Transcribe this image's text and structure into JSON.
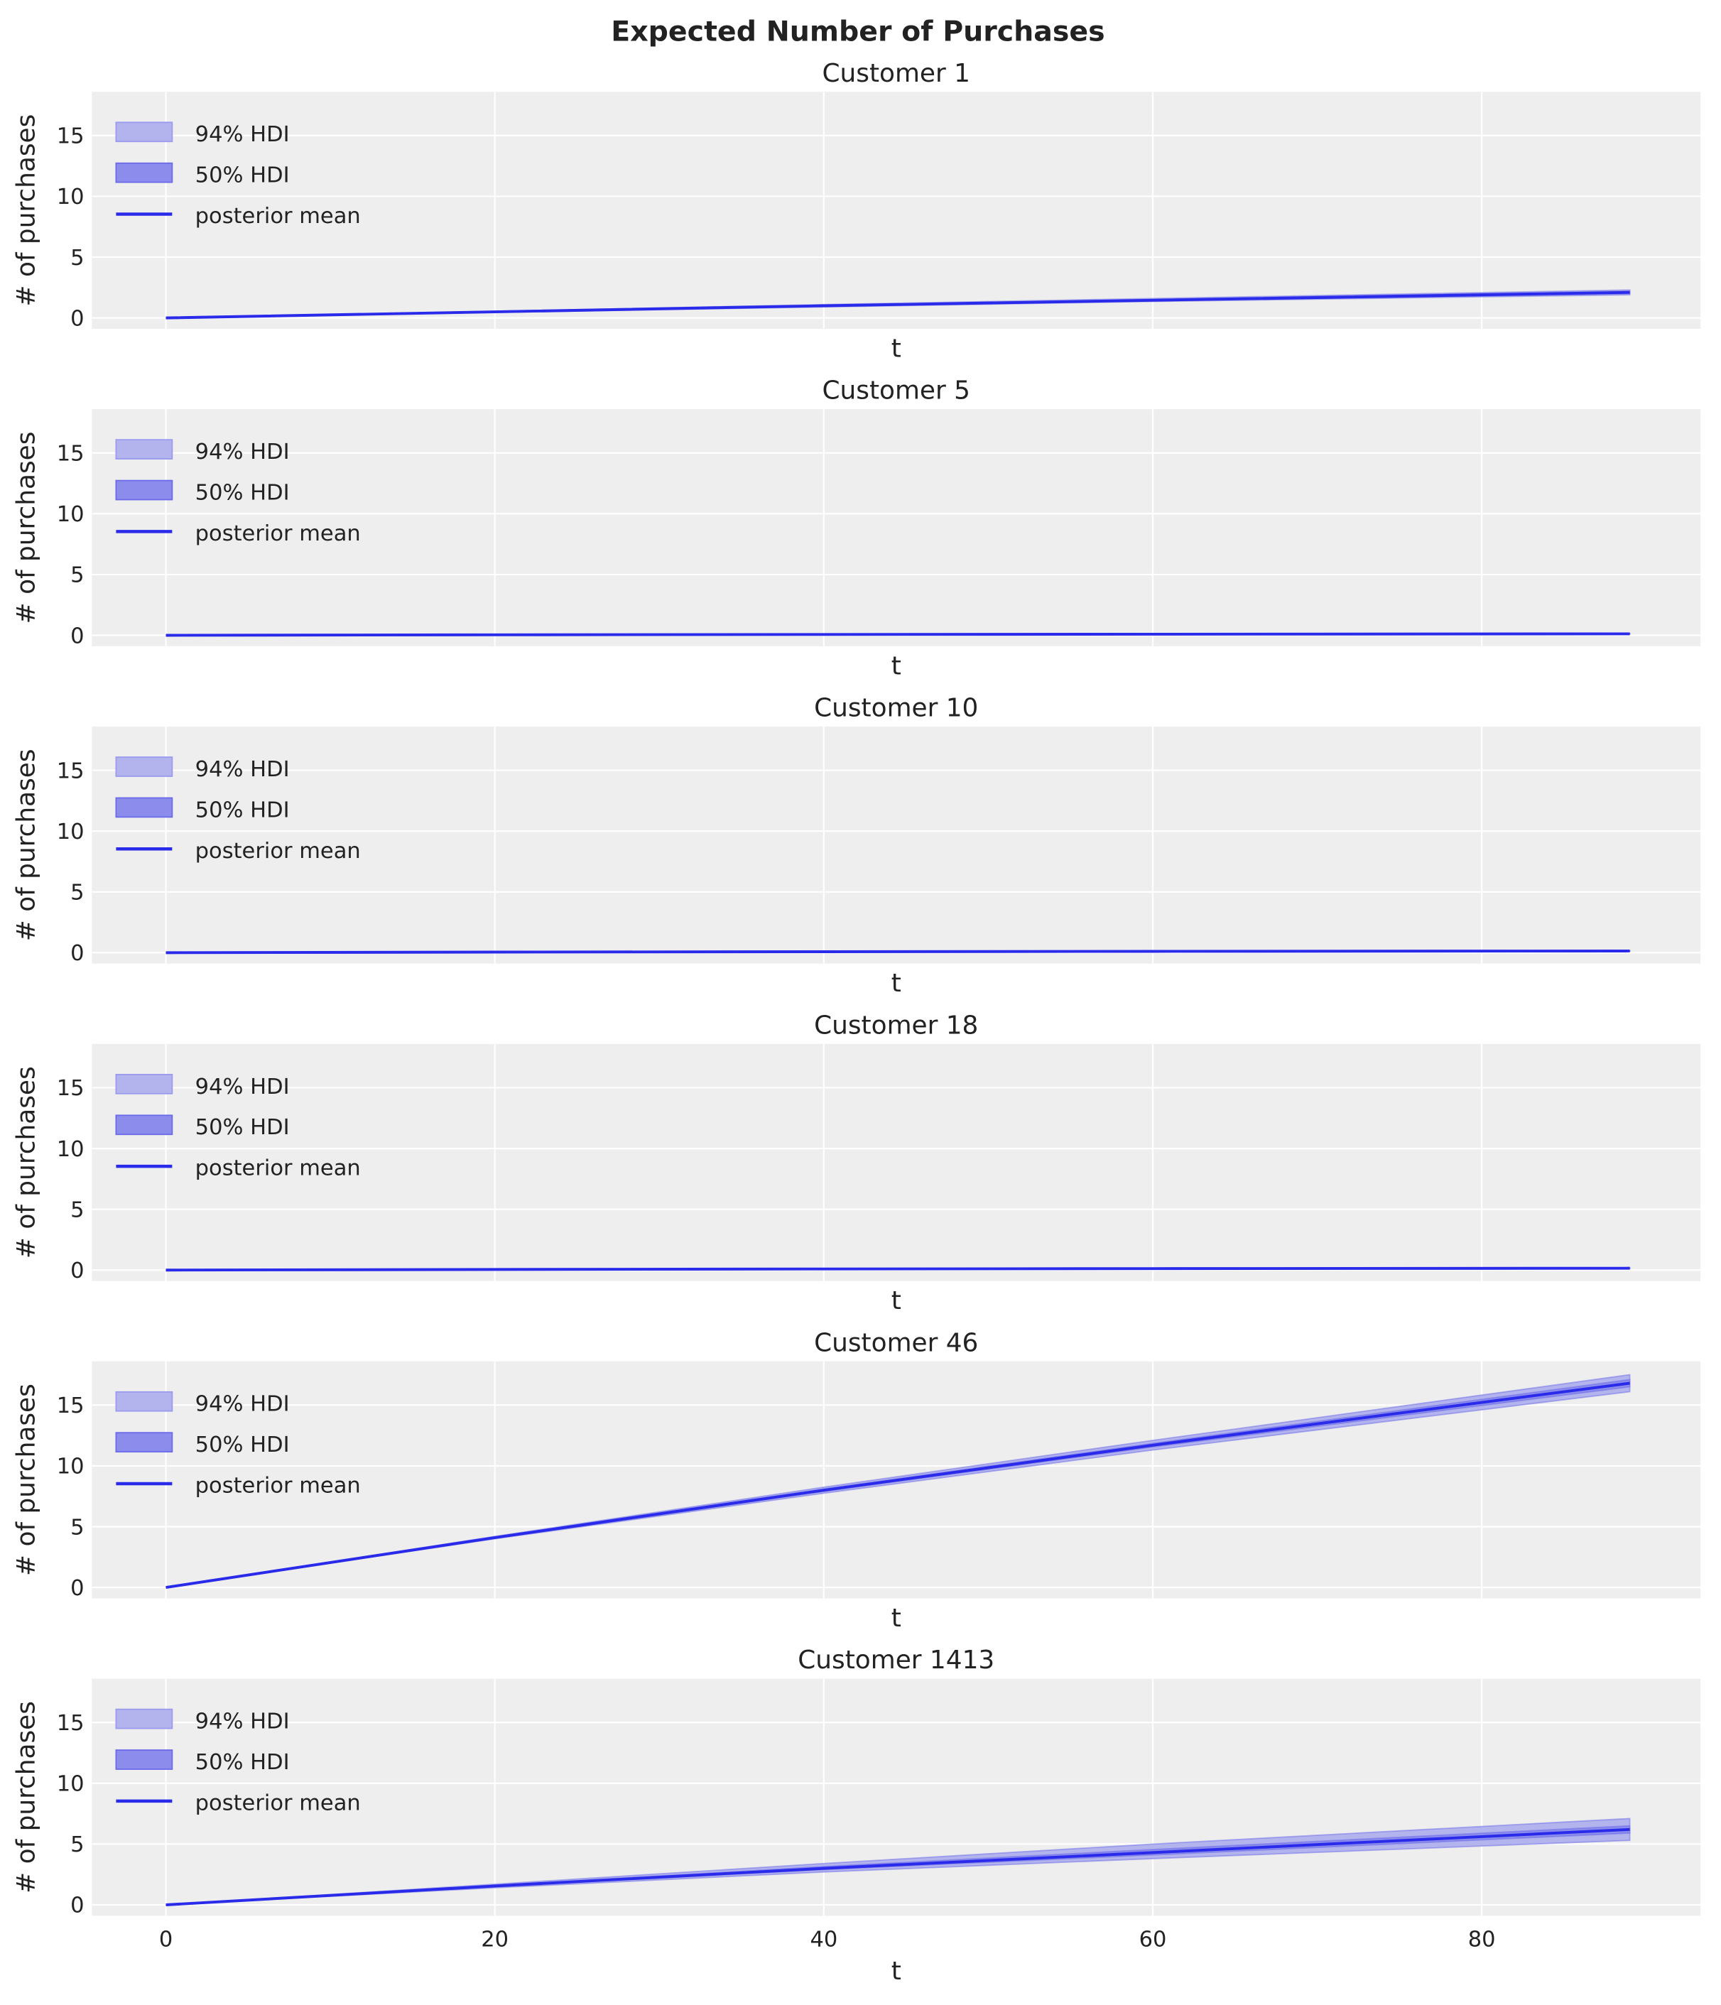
{
  "chart_data": {
    "type": "line",
    "suptitle": "Expected Number of Purchases",
    "xlabel": "t",
    "ylabel": "# of purchases",
    "xlim": [
      -4.5,
      93.3
    ],
    "ylim": [
      -0.9,
      18.6
    ],
    "xticks": [
      0,
      20,
      40,
      60,
      80
    ],
    "yticks": [
      0,
      5,
      10,
      15
    ],
    "grid": true,
    "legend_placement": "upper-left",
    "legend": [
      "94% HDI",
      "50% HDI",
      "posterior mean"
    ],
    "colors": {
      "line": "#2a2aea",
      "hdi94": "#b3b3ee",
      "hdi50": "#8c8cec",
      "background": "#eeeeee"
    },
    "x": [
      0,
      20,
      40,
      60,
      89
    ],
    "panels": [
      {
        "title": "Customer 1",
        "mean": [
          0,
          0.5,
          1.0,
          1.45,
          2.1
        ],
        "hdi94": [
          [
            0,
            0
          ],
          [
            0.45,
            0.55
          ],
          [
            0.9,
            1.1
          ],
          [
            1.35,
            1.6
          ],
          [
            1.9,
            2.3
          ]
        ],
        "hdi50": [
          [
            0,
            0
          ],
          [
            0.48,
            0.52
          ],
          [
            0.97,
            1.03
          ],
          [
            1.42,
            1.5
          ],
          [
            2.0,
            2.2
          ]
        ]
      },
      {
        "title": "Customer 5",
        "mean": [
          0,
          0.04,
          0.07,
          0.09,
          0.12
        ],
        "hdi94": [
          [
            0,
            0
          ],
          [
            0.03,
            0.05
          ],
          [
            0.06,
            0.08
          ],
          [
            0.08,
            0.1
          ],
          [
            0.1,
            0.14
          ]
        ],
        "hdi50": [
          [
            0,
            0
          ],
          [
            0.035,
            0.045
          ],
          [
            0.065,
            0.075
          ],
          [
            0.085,
            0.095
          ],
          [
            0.11,
            0.13
          ]
        ]
      },
      {
        "title": "Customer 10",
        "mean": [
          0,
          0.05,
          0.08,
          0.11,
          0.14
        ],
        "hdi94": [
          [
            0,
            0
          ],
          [
            0.04,
            0.06
          ],
          [
            0.07,
            0.09
          ],
          [
            0.1,
            0.12
          ],
          [
            0.12,
            0.16
          ]
        ],
        "hdi50": [
          [
            0,
            0
          ],
          [
            0.045,
            0.055
          ],
          [
            0.075,
            0.085
          ],
          [
            0.105,
            0.115
          ],
          [
            0.13,
            0.15
          ]
        ]
      },
      {
        "title": "Customer 18",
        "mean": [
          0,
          0.05,
          0.09,
          0.12,
          0.15
        ],
        "hdi94": [
          [
            0,
            0
          ],
          [
            0.04,
            0.06
          ],
          [
            0.08,
            0.1
          ],
          [
            0.11,
            0.13
          ],
          [
            0.13,
            0.17
          ]
        ],
        "hdi50": [
          [
            0,
            0
          ],
          [
            0.045,
            0.055
          ],
          [
            0.085,
            0.095
          ],
          [
            0.115,
            0.125
          ],
          [
            0.14,
            0.16
          ]
        ]
      },
      {
        "title": "Customer 46",
        "mean": [
          0,
          4.1,
          8.0,
          11.7,
          16.8
        ],
        "hdi94": [
          [
            0,
            0
          ],
          [
            4.0,
            4.2
          ],
          [
            7.75,
            8.25
          ],
          [
            11.3,
            12.1
          ],
          [
            16.1,
            17.5
          ]
        ],
        "hdi50": [
          [
            0,
            0
          ],
          [
            4.05,
            4.15
          ],
          [
            7.9,
            8.1
          ],
          [
            11.55,
            11.85
          ],
          [
            16.5,
            17.1
          ]
        ]
      },
      {
        "title": "Customer 1413",
        "mean": [
          0,
          1.55,
          3.0,
          4.3,
          6.2
        ],
        "hdi94": [
          [
            0,
            0
          ],
          [
            1.4,
            1.7
          ],
          [
            2.7,
            3.4
          ],
          [
            3.8,
            5.0
          ],
          [
            5.3,
            7.1
          ]
        ],
        "hdi50": [
          [
            0,
            0
          ],
          [
            1.5,
            1.6
          ],
          [
            2.9,
            3.15
          ],
          [
            4.1,
            4.55
          ],
          [
            5.9,
            6.5
          ]
        ]
      }
    ]
  }
}
